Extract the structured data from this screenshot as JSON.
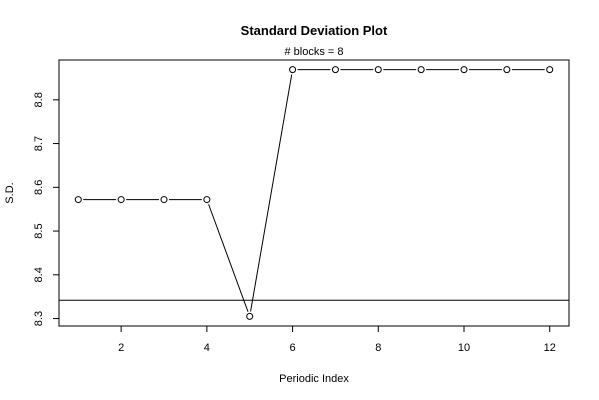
{
  "chart_data": {
    "type": "line",
    "title": "Standard Deviation Plot",
    "subtitle": "# blocks =  8",
    "xlabel": "Periodic Index",
    "ylabel": "S.D.",
    "x": [
      1,
      2,
      3,
      4,
      5,
      6,
      7,
      8,
      9,
      10,
      11,
      12
    ],
    "values": [
      8.572,
      8.572,
      8.572,
      8.572,
      8.305,
      8.869,
      8.869,
      8.869,
      8.869,
      8.869,
      8.869,
      8.869
    ],
    "xlim": [
      0.55,
      12.45
    ],
    "ylim": [
      8.283,
      8.891
    ],
    "xticks": [
      2,
      4,
      6,
      8,
      10,
      12
    ],
    "yticks": [
      8.3,
      8.4,
      8.5,
      8.6,
      8.7,
      8.8
    ],
    "reference_line": 8.342,
    "marker": "open-circle",
    "grid": false,
    "colors": {
      "line": "#000000",
      "background": "#ffffff"
    }
  }
}
